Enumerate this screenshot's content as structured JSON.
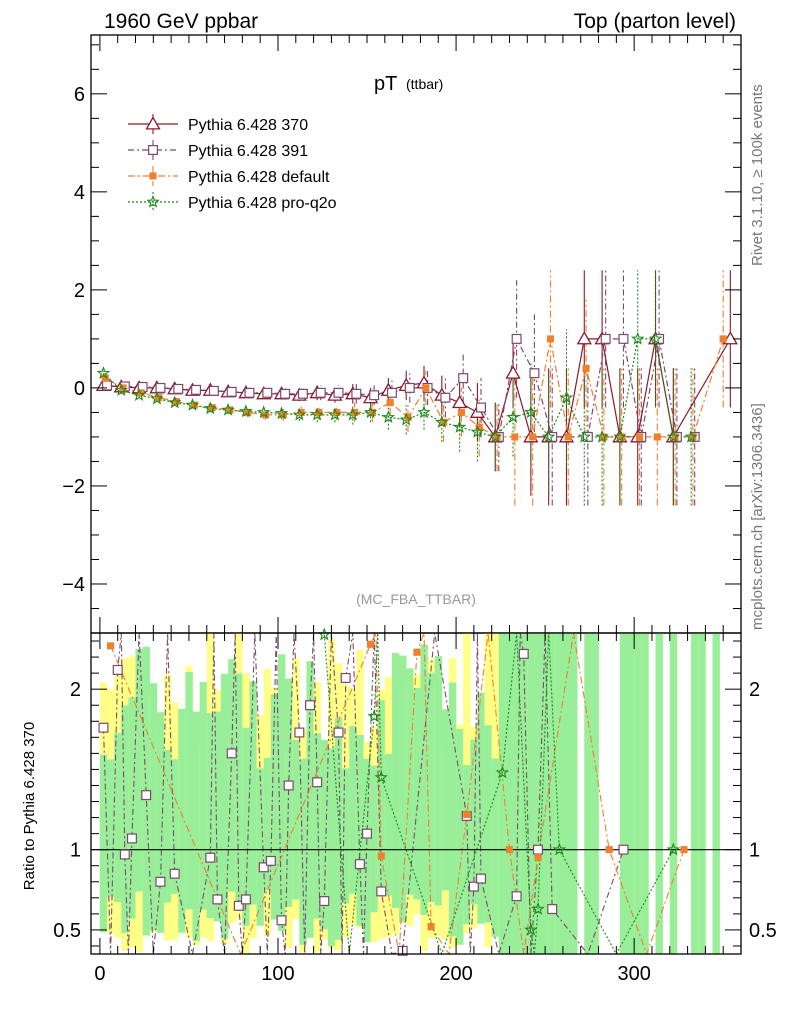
{
  "header": {
    "left": "1960 GeV ppbar",
    "right": "Top (parton level)"
  },
  "side_labels": {
    "rivet": "Rivet 3.1.10, ≥ 100k events",
    "mcplots": "mcplots.cern.ch [arXiv:1306.3436]"
  },
  "chart_data": [
    {
      "type": "line",
      "title_main": "pT",
      "title_sub": "(ttbar)",
      "watermark": "(MC_FBA_TTBAR)",
      "xlim": [
        -5,
        360
      ],
      "ylim": [
        -5,
        7.2
      ],
      "y_ticks": [
        -4,
        -2,
        0,
        2,
        4,
        6
      ],
      "y_tick_labels": [
        "−4",
        "−2",
        "0",
        "2",
        "4",
        "6"
      ],
      "legend_position": "top-left",
      "series": [
        {
          "name": "Pythia 6.428 370",
          "color": "#8b1a2b",
          "marker": "triangle",
          "x": [
            2,
            12,
            22,
            32,
            42,
            52,
            62,
            72,
            82,
            92,
            102,
            112,
            122,
            132,
            142,
            152,
            162,
            172,
            182,
            192,
            202,
            212,
            222,
            232,
            242,
            252,
            262,
            272,
            282,
            292,
            302,
            312,
            322,
            354
          ],
          "y": [
            0.05,
            0.02,
            0.0,
            0.0,
            -0.02,
            -0.05,
            -0.05,
            -0.08,
            -0.1,
            -0.12,
            -0.12,
            -0.15,
            -0.1,
            -0.15,
            -0.12,
            -0.2,
            -0.05,
            0.05,
            0.1,
            -0.15,
            -0.3,
            -0.5,
            -1.0,
            0.3,
            -1.0,
            -1.0,
            -1.0,
            1.0,
            1.0,
            -1.0,
            -1.0,
            1.0,
            -1.0,
            1.0
          ],
          "err": [
            0.05,
            0.05,
            0.05,
            0.06,
            0.06,
            0.07,
            0.08,
            0.08,
            0.1,
            0.1,
            0.12,
            0.12,
            0.15,
            0.15,
            0.2,
            0.2,
            0.25,
            0.3,
            0.35,
            0.4,
            0.5,
            0.6,
            0.7,
            0.7,
            1.2,
            1.4,
            1.4,
            1.4,
            1.4,
            1.4,
            1.4,
            1.4,
            1.4,
            1.4
          ]
        },
        {
          "name": "Pythia 6.428 391",
          "color": "#7a4a6e",
          "marker": "square",
          "x": [
            4,
            14,
            24,
            34,
            44,
            54,
            64,
            74,
            84,
            94,
            104,
            114,
            124,
            134,
            144,
            154,
            164,
            174,
            184,
            194,
            204,
            214,
            224,
            234,
            244,
            254,
            274,
            284,
            294,
            304,
            314,
            324,
            334
          ],
          "y": [
            0.05,
            0.03,
            0.02,
            0.0,
            -0.02,
            -0.04,
            -0.06,
            -0.08,
            -0.1,
            -0.1,
            -0.12,
            -0.12,
            -0.1,
            -0.1,
            -0.12,
            -0.15,
            -0.1,
            0.0,
            0.0,
            -0.2,
            0.2,
            -0.4,
            -1.0,
            1.0,
            0.3,
            -1.0,
            -1.0,
            1.0,
            1.0,
            -1.0,
            1.0,
            -1.0,
            -1.0
          ],
          "err": [
            0.05,
            0.05,
            0.05,
            0.06,
            0.06,
            0.07,
            0.08,
            0.08,
            0.1,
            0.1,
            0.12,
            0.12,
            0.15,
            0.15,
            0.2,
            0.2,
            0.25,
            0.3,
            0.35,
            0.4,
            0.5,
            0.6,
            0.7,
            1.2,
            1.2,
            1.4,
            1.4,
            1.4,
            1.4,
            1.4,
            1.4,
            1.4,
            1.4
          ]
        },
        {
          "name": "Pythia 6.428 default",
          "color": "#f07f2e",
          "marker": "filled-square",
          "x": [
            3,
            13,
            23,
            33,
            43,
            53,
            63,
            73,
            83,
            93,
            103,
            113,
            123,
            133,
            143,
            153,
            163,
            173,
            183,
            193,
            203,
            213,
            223,
            233,
            243,
            253,
            263,
            273,
            283,
            293,
            303,
            313,
            323,
            333,
            350
          ],
          "y": [
            0.2,
            0.0,
            -0.1,
            -0.2,
            -0.28,
            -0.35,
            -0.4,
            -0.45,
            -0.5,
            -0.55,
            -0.55,
            -0.5,
            -0.5,
            -0.5,
            -0.5,
            -0.5,
            -0.3,
            -0.6,
            0.0,
            -0.7,
            -0.5,
            -0.8,
            -1.0,
            -1.0,
            -1.0,
            1.0,
            -1.0,
            0.4,
            -1.0,
            -1.0,
            -1.0,
            -1.0,
            -1.0,
            -1.0,
            1.0
          ],
          "err": [
            0.05,
            0.05,
            0.05,
            0.06,
            0.06,
            0.07,
            0.08,
            0.08,
            0.1,
            0.1,
            0.12,
            0.12,
            0.15,
            0.15,
            0.2,
            0.2,
            0.25,
            0.3,
            0.35,
            0.4,
            0.5,
            0.6,
            0.7,
            1.4,
            1.4,
            1.4,
            1.4,
            1.4,
            1.4,
            1.4,
            1.4,
            1.4,
            1.4,
            1.4,
            1.4
          ]
        },
        {
          "name": "Pythia 6.428 pro-q2o",
          "color": "#1a8a1a",
          "marker": "star",
          "x": [
            2,
            12,
            22,
            32,
            42,
            52,
            62,
            72,
            82,
            92,
            102,
            112,
            122,
            132,
            142,
            152,
            162,
            172,
            182,
            192,
            202,
            212,
            222,
            232,
            242,
            252,
            262,
            272,
            282,
            292,
            302,
            312,
            322,
            332
          ],
          "y": [
            0.3,
            -0.05,
            -0.15,
            -0.22,
            -0.3,
            -0.35,
            -0.42,
            -0.45,
            -0.48,
            -0.5,
            -0.52,
            -0.55,
            -0.55,
            -0.55,
            -0.55,
            -0.5,
            -0.6,
            -0.65,
            -0.5,
            -0.7,
            -0.8,
            -0.9,
            -1.0,
            -0.6,
            -0.5,
            -1.0,
            -0.2,
            -1.0,
            -1.0,
            -1.0,
            1.0,
            1.0,
            -1.0,
            -1.0
          ],
          "err": [
            0.05,
            0.05,
            0.05,
            0.06,
            0.06,
            0.07,
            0.08,
            0.08,
            0.1,
            0.1,
            0.12,
            0.12,
            0.15,
            0.15,
            0.2,
            0.2,
            0.25,
            0.3,
            0.35,
            0.4,
            0.5,
            0.6,
            0.7,
            0.8,
            1.0,
            1.2,
            1.4,
            1.4,
            1.4,
            1.4,
            1.4,
            1.4,
            1.4,
            1.4
          ]
        }
      ]
    },
    {
      "type": "scatter",
      "ylabel": "Ratio to Pythia 6.428 370",
      "xlim": [
        -5,
        360
      ],
      "ylim": [
        0.35,
        2.35
      ],
      "x_ticks": [
        0,
        100,
        200,
        300
      ],
      "x_tick_labels": [
        "0",
        "100",
        "200",
        "300"
      ],
      "y_ticks": [
        0.5,
        1,
        2
      ],
      "y_tick_labels": [
        "0.5",
        "1",
        "2"
      ],
      "reference_line": 1,
      "series": [
        {
          "name": "Pythia 6.428 391",
          "color": "#7a4a6e",
          "marker": "square",
          "x": [
            2,
            10,
            14,
            18,
            26,
            34,
            42,
            62,
            66,
            74,
            78,
            82,
            92,
            96,
            102,
            106,
            112,
            118,
            122,
            126,
            134,
            138,
            146,
            150,
            158,
            170,
            206,
            210,
            214,
            234,
            238,
            246,
            254,
            294
          ],
          "y": [
            1.76,
            2.12,
            0.97,
            1.07,
            1.34,
            0.8,
            0.85,
            0.95,
            0.69,
            1.6,
            0.65,
            0.69,
            0.89,
            0.93,
            0.56,
            1.4,
            1.73,
            1.9,
            1.42,
            0.68,
            1.73,
            2.07,
            0.91,
            1.1,
            0.74,
            0.37,
            1.21,
            0.77,
            0.82,
            0.71,
            2.22,
            1.0,
            0.63,
            1.0
          ]
        },
        {
          "name": "Pythia 6.428 default",
          "color": "#f07f2e",
          "marker": "filled-square",
          "x": [
            6,
            152,
            158,
            178,
            186,
            206,
            230,
            246,
            286,
            328
          ],
          "y": [
            2.27,
            2.28,
            0.96,
            2.23,
            0.52,
            1.22,
            1.0,
            0.95,
            1.0,
            1.0
          ],
          "err": [
            0,
            0,
            0,
            0,
            0,
            0,
            0,
            0,
            0,
            0
          ]
        },
        {
          "name": "Pythia 6.428 pro-q2o",
          "color": "#1a8a1a",
          "marker": "star",
          "x": [
            126,
            154,
            158,
            226,
            242,
            246,
            258,
            322
          ],
          "y": [
            2.34,
            1.83,
            1.45,
            1.48,
            0.5,
            0.63,
            1.0,
            1.0
          ]
        }
      ]
    }
  ]
}
